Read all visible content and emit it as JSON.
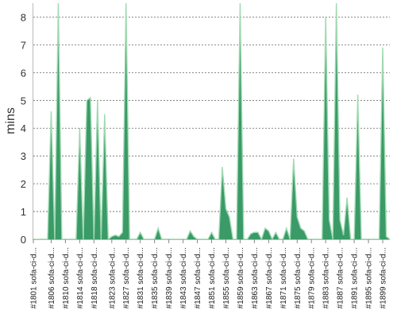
{
  "chart_data": {
    "type": "area",
    "ylabel": "mins",
    "ylim": [
      0,
      8.5
    ],
    "yticks": [
      0,
      1,
      2,
      3,
      4,
      5,
      6,
      7,
      8
    ],
    "grid": true,
    "color": "#3a9a68",
    "x": [
      1801,
      1802,
      1803,
      1804,
      1805,
      1806,
      1807,
      1808,
      1809,
      1810,
      1811,
      1812,
      1813,
      1814,
      1815,
      1816,
      1817,
      1818,
      1819,
      1820,
      1821,
      1822,
      1823,
      1824,
      1825,
      1826,
      1827,
      1828,
      1829,
      1830,
      1831,
      1832,
      1833,
      1834,
      1835,
      1836,
      1837,
      1838,
      1839,
      1840,
      1841,
      1842,
      1843,
      1844,
      1845,
      1846,
      1847,
      1848,
      1849,
      1850,
      1851,
      1852,
      1853,
      1854,
      1855,
      1856,
      1857,
      1858,
      1859,
      1860,
      1861,
      1862,
      1863,
      1864,
      1865,
      1866,
      1867,
      1868,
      1869,
      1870,
      1871,
      1872,
      1873,
      1874,
      1875,
      1876,
      1877,
      1878,
      1879,
      1880,
      1881,
      1882,
      1883,
      1884,
      1885,
      1886,
      1887,
      1888,
      1889,
      1890,
      1891,
      1892,
      1893,
      1894,
      1895,
      1896,
      1897,
      1898,
      1899,
      1900,
      1901
    ],
    "values": [
      0,
      0,
      0,
      0,
      0,
      4.6,
      0,
      8.5,
      0,
      0,
      0,
      0,
      0,
      4.0,
      0,
      5.0,
      5.1,
      0,
      5.0,
      0,
      4.5,
      0,
      0.1,
      0.15,
      0.1,
      0.25,
      8.5,
      0,
      0,
      0,
      0.25,
      0,
      0,
      0,
      0,
      0.4,
      0,
      0,
      0,
      0,
      0,
      0,
      0,
      0,
      0.3,
      0.1,
      0,
      0,
      0,
      0,
      0.25,
      0,
      0,
      2.6,
      1.1,
      0.8,
      0,
      0,
      8.5,
      0,
      0,
      0.2,
      0.25,
      0.25,
      0,
      0.4,
      0.3,
      0,
      0.25,
      0,
      0,
      0.4,
      0,
      2.9,
      0.8,
      0.4,
      0.3,
      0,
      0,
      0,
      0,
      0,
      8.0,
      0.7,
      0,
      8.5,
      0.7,
      0.15,
      1.5,
      0,
      0,
      5.2,
      0,
      0,
      0,
      0,
      0,
      0,
      6.9,
      0.1,
      0
    ],
    "x_tick_labels": [
      "#1801 sofa-ci-d...",
      "#1806 sofa-ci-d...",
      "#1810 sofa-ci-d...",
      "#1814 sofa-ci-d...",
      "#1818 sofa-ci-d...",
      "#1823 sofa-ci-d...",
      "#1827 sofa-ci-d...",
      "#1831 sofa-ci-d...",
      "#1835 sofa-ci-d...",
      "#1839 sofa-ci-d...",
      "#1843 sofa-ci-d...",
      "#1847 sofa-ci-d...",
      "#1851 sofa-ci-d...",
      "#1855 sofa-ci-d...",
      "#1859 sofa-ci-d...",
      "#1863 sofa-ci-d...",
      "#1867 sofa-ci-d...",
      "#1871 sofa-ci-d...",
      "#1875 sofa-ci-d...",
      "#1879 sofa-ci-d...",
      "#1883 sofa-ci-d...",
      "#1887 sofa-ci-d...",
      "#1891 sofa-ci-d...",
      "#1895 sofa-ci-d...",
      "#1899 sofa-ci-d..."
    ],
    "x_tick_positions": [
      1801,
      1806,
      1810,
      1814,
      1818,
      1823,
      1827,
      1831,
      1835,
      1839,
      1843,
      1847,
      1851,
      1855,
      1859,
      1863,
      1867,
      1871,
      1875,
      1879,
      1883,
      1887,
      1891,
      1895,
      1899
    ]
  }
}
